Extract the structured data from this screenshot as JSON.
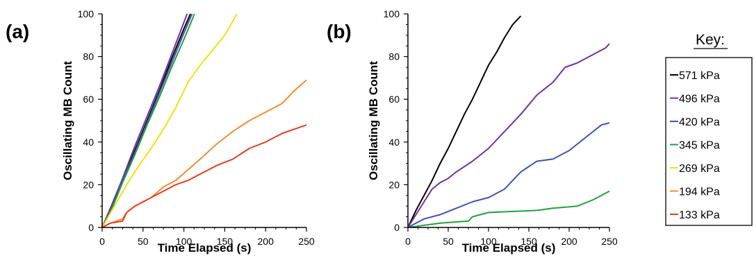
{
  "chart_data": [
    {
      "type": "line",
      "panel_label": "(a)",
      "xlabel": "Time Elapsed (s)",
      "ylabel": "Oscillating MB Count",
      "xlim": [
        0,
        250
      ],
      "ylim": [
        0,
        100
      ],
      "xticks": [
        "0",
        "50",
        "100",
        "150",
        "200",
        "250"
      ],
      "yticks": [
        "0",
        "20",
        "40",
        "60",
        "80",
        "100"
      ],
      "grid": false,
      "series": [
        {
          "name": "571 kPa",
          "color": "#000000",
          "points": [
            [
              0,
              0
            ],
            [
              10,
              8
            ],
            [
              25,
              22
            ],
            [
              40,
              36
            ],
            [
              55,
              50
            ],
            [
              70,
              64
            ],
            [
              85,
              79
            ],
            [
              100,
              93
            ],
            [
              108,
              100
            ]
          ]
        },
        {
          "name": "496 kPa",
          "color": "#7030a0",
          "points": [
            [
              0,
              0
            ],
            [
              10,
              9
            ],
            [
              25,
              23
            ],
            [
              40,
              38
            ],
            [
              55,
              52
            ],
            [
              70,
              66
            ],
            [
              85,
              81
            ],
            [
              100,
              96
            ],
            [
              104,
              100
            ]
          ]
        },
        {
          "name": "420 kPa",
          "color": "#3f51b5",
          "points": [
            [
              0,
              0
            ],
            [
              10,
              8
            ],
            [
              25,
              22
            ],
            [
              40,
              35
            ],
            [
              55,
              49
            ],
            [
              70,
              63
            ],
            [
              85,
              77
            ],
            [
              100,
              91
            ],
            [
              110,
              100
            ]
          ]
        },
        {
          "name": "345 kPa",
          "color": "#22a03a",
          "points": [
            [
              0,
              0
            ],
            [
              10,
              7
            ],
            [
              25,
              21
            ],
            [
              40,
              34
            ],
            [
              55,
              48
            ],
            [
              70,
              61
            ],
            [
              85,
              75
            ],
            [
              100,
              88
            ],
            [
              113,
              100
            ]
          ]
        },
        {
          "name": "269 kPa",
          "color": "#f0e010",
          "points": [
            [
              0,
              0
            ],
            [
              15,
              10
            ],
            [
              30,
              20
            ],
            [
              45,
              29
            ],
            [
              60,
              37
            ],
            [
              75,
              46
            ],
            [
              90,
              56
            ],
            [
              105,
              68
            ],
            [
              120,
              76
            ],
            [
              135,
              83
            ],
            [
              150,
              90
            ],
            [
              165,
              100
            ]
          ]
        },
        {
          "name": "194 kPa",
          "color": "#f08c30",
          "points": [
            [
              0,
              0
            ],
            [
              10,
              2
            ],
            [
              25,
              4
            ],
            [
              30,
              7
            ],
            [
              40,
              10
            ],
            [
              60,
              14
            ],
            [
              75,
              19
            ],
            [
              90,
              22
            ],
            [
              105,
              27
            ],
            [
              120,
              32
            ],
            [
              140,
              39
            ],
            [
              160,
              45
            ],
            [
              180,
              50
            ],
            [
              200,
              54
            ],
            [
              220,
              58
            ],
            [
              235,
              64
            ],
            [
              250,
              69
            ]
          ]
        },
        {
          "name": "133 kPa",
          "color": "#e83a25",
          "points": [
            [
              0,
              0
            ],
            [
              10,
              2
            ],
            [
              25,
              3
            ],
            [
              30,
              7
            ],
            [
              40,
              10
            ],
            [
              60,
              14
            ],
            [
              75,
              17
            ],
            [
              90,
              20
            ],
            [
              105,
              22
            ],
            [
              120,
              25
            ],
            [
              140,
              29
            ],
            [
              160,
              32
            ],
            [
              180,
              37
            ],
            [
              200,
              40
            ],
            [
              220,
              44
            ],
            [
              235,
              46
            ],
            [
              250,
              48
            ]
          ]
        }
      ]
    },
    {
      "type": "line",
      "panel_label": "(b)",
      "xlabel": "Time Elapsed (s)",
      "ylabel": "Oscillating MB Count",
      "xlim": [
        0,
        250
      ],
      "ylim": [
        0,
        100
      ],
      "xticks": [
        "0",
        "50",
        "100",
        "150",
        "200",
        "250"
      ],
      "yticks": [
        "0",
        "20",
        "40",
        "60",
        "80",
        "100"
      ],
      "grid": false,
      "series": [
        {
          "name": "571 kPa",
          "color": "#000000",
          "points": [
            [
              0,
              0
            ],
            [
              10,
              8
            ],
            [
              20,
              15
            ],
            [
              30,
              22
            ],
            [
              40,
              30
            ],
            [
              50,
              37
            ],
            [
              60,
              45
            ],
            [
              70,
              53
            ],
            [
              80,
              60
            ],
            [
              90,
              68
            ],
            [
              100,
              76
            ],
            [
              110,
              82
            ],
            [
              120,
              89
            ],
            [
              130,
              95
            ],
            [
              140,
              99
            ]
          ]
        },
        {
          "name": "496 kPa",
          "color": "#7030a0",
          "points": [
            [
              0,
              0
            ],
            [
              10,
              6
            ],
            [
              20,
              12
            ],
            [
              30,
              18
            ],
            [
              40,
              21
            ],
            [
              50,
              23
            ],
            [
              60,
              26
            ],
            [
              80,
              31
            ],
            [
              100,
              37
            ],
            [
              120,
              45
            ],
            [
              140,
              53
            ],
            [
              160,
              62
            ],
            [
              180,
              68
            ],
            [
              195,
              75
            ],
            [
              210,
              77
            ],
            [
              230,
              81
            ],
            [
              245,
              84
            ],
            [
              250,
              86
            ]
          ]
        },
        {
          "name": "420 kPa",
          "color": "#3f51b5",
          "points": [
            [
              0,
              0
            ],
            [
              10,
              2
            ],
            [
              20,
              4
            ],
            [
              40,
              6
            ],
            [
              60,
              9
            ],
            [
              80,
              12
            ],
            [
              100,
              14
            ],
            [
              120,
              18
            ],
            [
              140,
              26
            ],
            [
              160,
              31
            ],
            [
              180,
              32
            ],
            [
              200,
              36
            ],
            [
              220,
              42
            ],
            [
              240,
              48
            ],
            [
              250,
              49
            ]
          ]
        },
        {
          "name": "345 kPa",
          "color": "#22a03a",
          "points": [
            [
              0,
              0
            ],
            [
              20,
              1
            ],
            [
              40,
              2
            ],
            [
              75,
              3
            ],
            [
              80,
              5
            ],
            [
              100,
              7
            ],
            [
              130,
              7.5
            ],
            [
              160,
              8
            ],
            [
              180,
              9
            ],
            [
              210,
              10
            ],
            [
              230,
              13
            ],
            [
              250,
              17
            ]
          ]
        }
      ]
    }
  ],
  "key": {
    "title": "Key:",
    "entries": [
      {
        "label": "571 kPa",
        "color": "#000000"
      },
      {
        "label": "496 kPa",
        "color": "#7030a0"
      },
      {
        "label": "420 kPa",
        "color": "#3f51b5"
      },
      {
        "label": "345 kPa",
        "color": "#22a03a"
      },
      {
        "label": "269 kPa",
        "color": "#f0e010"
      },
      {
        "label": "194 kPa",
        "color": "#f08c30"
      },
      {
        "label": "133 kPa",
        "color": "#e83a25"
      }
    ]
  }
}
